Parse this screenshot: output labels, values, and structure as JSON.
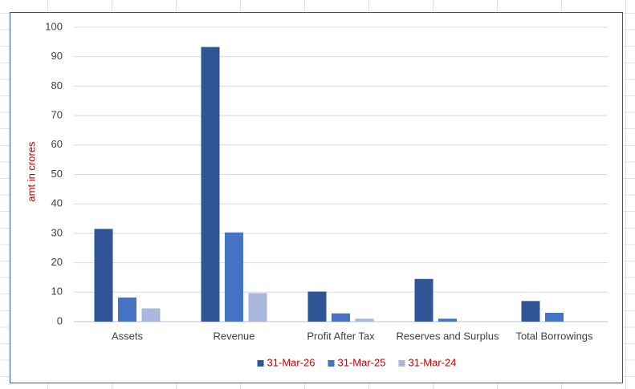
{
  "chart_data": {
    "type": "bar",
    "y_axis_label": "amt in crores",
    "categories": [
      "Assets",
      "Revenue",
      "Profit After Tax",
      "Reserves and Surplus",
      "Total Borrowings"
    ],
    "series": [
      {
        "name": "31-Mar-26",
        "color": "#2f5597",
        "values": [
          31.5,
          93.3,
          10.2,
          14.5,
          7.0
        ]
      },
      {
        "name": "31-Mar-25",
        "color": "#4472c4",
        "values": [
          8.2,
          30.3,
          2.8,
          1.0,
          3.0
        ]
      },
      {
        "name": "31-Mar-24",
        "color": "#a9b7de",
        "values": [
          4.5,
          9.7,
          1.0,
          0,
          0
        ]
      }
    ],
    "ylim": [
      0,
      100
    ],
    "yticks": [
      0,
      10,
      20,
      30,
      40,
      50,
      60,
      70,
      80,
      90,
      100
    ],
    "grid": true,
    "legend": "bottom",
    "legend_text_color": "#c00000",
    "axis_label_color": "#c00000"
  }
}
